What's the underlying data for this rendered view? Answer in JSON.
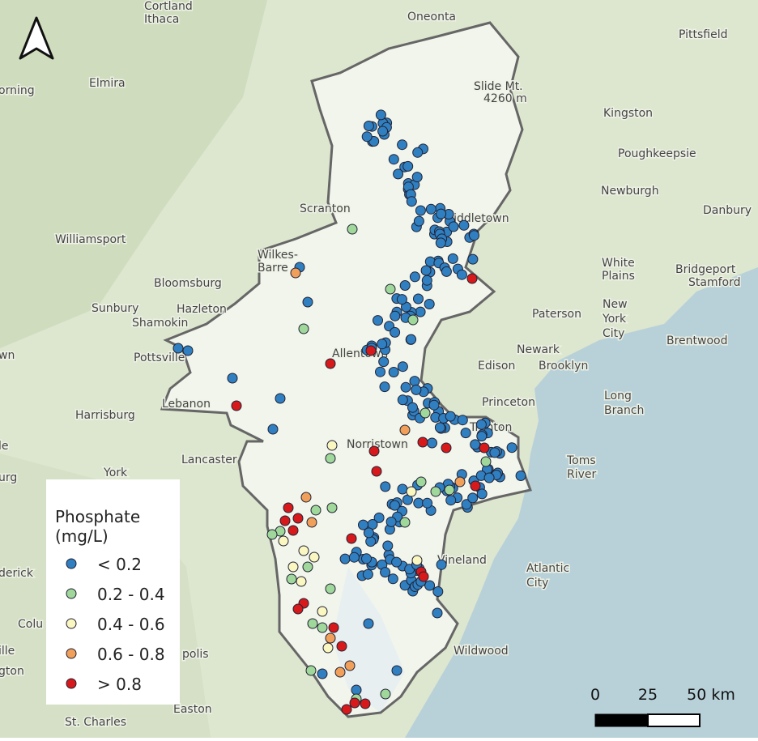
{
  "map": {
    "places": [
      "Cortland",
      "Ithaca",
      "Oneonta",
      "Pittsfield",
      "Elmira",
      "orning",
      "Slide Mt.",
      "4260 m",
      "Kingston",
      "Poughkeepsie",
      "Newburgh",
      "Danbury",
      "Scranton",
      "Middletown",
      "Williamsport",
      "Wilkes-",
      "Barre",
      "White",
      "Plains",
      "Bridgeport",
      "Stamford",
      "Bloomsburg",
      "Hazleton",
      "Sunbury",
      "Shamokin",
      "Paterson",
      "New",
      "York",
      "City",
      "Brentwood",
      "Pottsville",
      "Allentown",
      "Newark",
      "Brooklyn",
      "Edison",
      "Princeton",
      "Long",
      "Branch",
      "Harrisburg",
      "Lebanon",
      "Trenton",
      "Norristown",
      "Lancaster",
      "Toms",
      "River",
      "York",
      "Atlantic",
      "City",
      "Vineland",
      "Wildwood",
      "Easton",
      "St. Charles",
      "polis",
      "derick",
      "Colu",
      "ille",
      "gton",
      "wn",
      "le",
      "urg"
    ],
    "legend": {
      "title": [
        "Phosphate",
        "(mg/L)"
      ],
      "items": [
        {
          "label": "< 0.2",
          "color": "#2f7fc1"
        },
        {
          "label": "0.2 - 0.4",
          "color": "#9fd89a"
        },
        {
          "label": "0.4 - 0.6",
          "color": "#fbf7c0"
        },
        {
          "label": "0.6 - 0.8",
          "color": "#f0a05a"
        },
        {
          "label": "> 0.8",
          "color": "#d7191c"
        }
      ]
    },
    "scale_bar": [
      "0",
      "25",
      "50 km"
    ]
  }
}
